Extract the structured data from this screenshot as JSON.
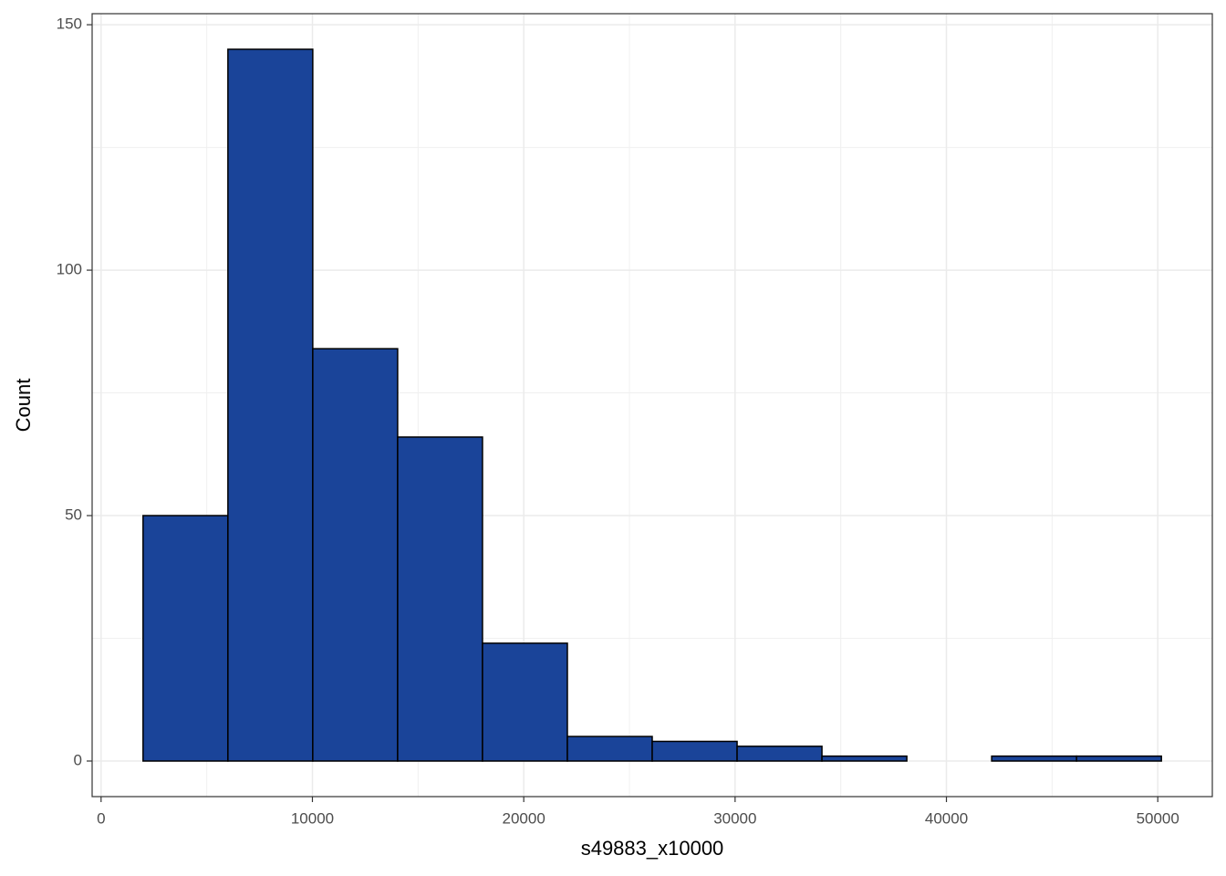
{
  "chart_data": {
    "type": "histogram",
    "xlabel": "s49883_x10000",
    "ylabel": "Count",
    "bins": [
      1986,
      6002,
      10017,
      14033,
      18048,
      22064,
      26079,
      30095,
      34110,
      38126,
      42141,
      46157,
      50172
    ],
    "values": [
      50,
      145,
      84,
      66,
      24,
      5,
      4,
      3,
      1,
      0,
      1,
      1
    ],
    "color": "#1a4499",
    "edgecolor": "#000000",
    "xlim": [
      -423,
      52581
    ],
    "ylim": [
      -7.25,
      152.25
    ],
    "xticks": [
      0,
      10000,
      20000,
      30000,
      40000,
      50000
    ],
    "yticks": [
      0,
      50,
      100,
      150
    ],
    "x_minor_grid": [
      5000,
      15000,
      25000,
      35000,
      45000
    ],
    "y_minor_grid": [
      25,
      75,
      125
    ],
    "grid": true
  }
}
